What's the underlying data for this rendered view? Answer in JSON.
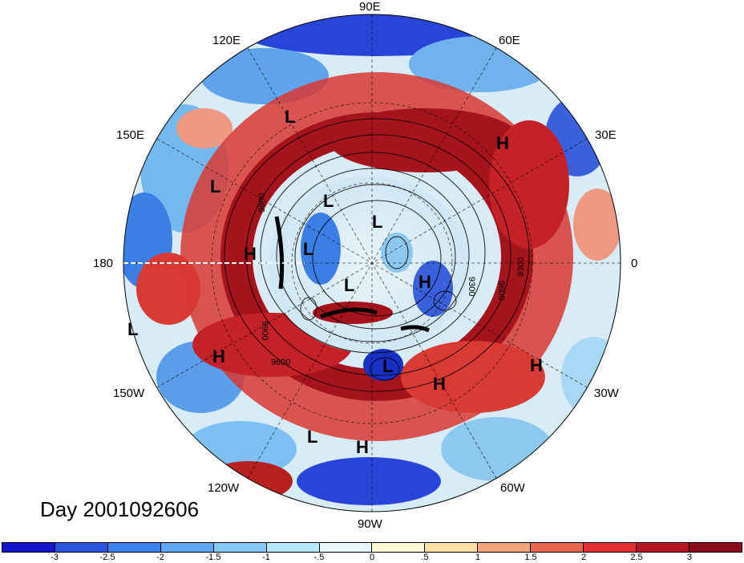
{
  "title": "Day 2001092606",
  "longitude_labels": {
    "90E": "90E",
    "60E": "60E",
    "120E": "120E",
    "30E": "30E",
    "150E": "150E",
    "180": "180",
    "0": "0",
    "150W": "150W",
    "30W": "30W",
    "120W": "120W",
    "60W": "60W",
    "90W": "90W"
  },
  "pressure_markers": {
    "h_europe": "H",
    "l_east_siberia": "L",
    "l_bering": "L",
    "h_pacific_nw": "H",
    "l_arctic_1": "L",
    "l_arctic_2": "L",
    "l_barents": "L",
    "h_greenland_east": "H",
    "l_canada": "L",
    "l_pacific_far": "L",
    "h_pacific_mid": "H",
    "l_great_lakes": "L",
    "h_atlantic_west": "H",
    "h_atlantic_east": "H",
    "l_mexico": "L",
    "h_gulf": "H"
  },
  "contour_labels": {
    "c9600_a": "9600",
    "c9300_a": "9300",
    "c9600_b": "9600",
    "c9300_b": "9300",
    "c9900_a": "9900",
    "c9600_c": "9600"
  },
  "colorbar": {
    "ticks": [
      "-3",
      "-2.5",
      "-2",
      "-1.5",
      "-1",
      "-.5",
      "0",
      ".5",
      "1",
      "1.5",
      "2",
      "2.5",
      "3"
    ],
    "colors": [
      "#1515c8",
      "#2b55e0",
      "#3c82ec",
      "#5fa7f2",
      "#87c9f6",
      "#b8e6fb",
      "#e6f8fd",
      "#fdf7d5",
      "#fbe0a4",
      "#f3a67a",
      "#e8684f",
      "#e02f31",
      "#b31521",
      "#8c0a1a"
    ]
  },
  "colors": {
    "deep_red": "#a5141c",
    "red": "#d93a34",
    "light_red": "#ee9a83",
    "neutral": "#e9f4f8",
    "light_blue": "#8cc8ef",
    "blue": "#3a7ee6",
    "deep_blue": "#1830c4"
  }
}
